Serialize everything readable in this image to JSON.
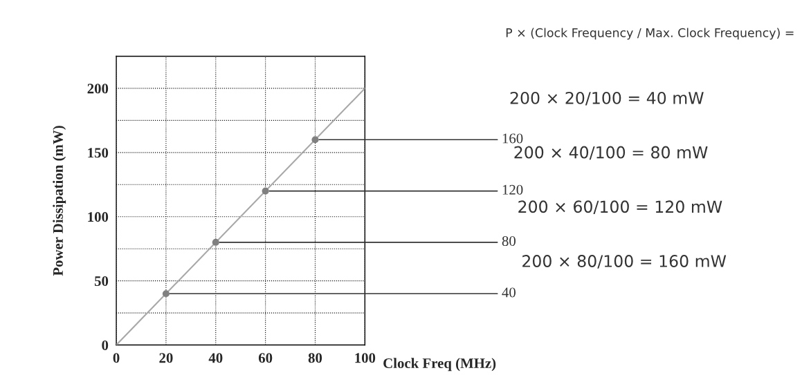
{
  "chart_data": {
    "type": "scatter",
    "xlabel": "Clock Freq (MHz)",
    "ylabel": "Power Dissipation (mW)",
    "xlim": [
      0,
      100
    ],
    "xticks": [
      0,
      20,
      40,
      60,
      80,
      100
    ],
    "ylim": [
      0,
      225
    ],
    "yticks": [
      0,
      {
        "value": 25,
        "label": null
      },
      50,
      {
        "value": 75,
        "label": null
      },
      100,
      {
        "value": 125,
        "label": null
      },
      150,
      {
        "value": 175,
        "label": null
      },
      200,
      {
        "value": 225,
        "label": null
      }
    ],
    "grid": true,
    "marker": "circle",
    "series": [
      {
        "type": "line",
        "color": "#a8a8a8",
        "x": [
          0,
          100
        ],
        "values": [
          0,
          200
        ],
        "marker": "none"
      },
      {
        "color": "#808080",
        "x": [
          20,
          40,
          60,
          80
        ],
        "values": [
          40,
          80,
          120,
          160
        ]
      }
    ],
    "annotations": [
      {
        "text": "160",
        "x": 80,
        "y": 160
      },
      {
        "text": "120",
        "x": 60,
        "y": 120
      },
      {
        "text": "80",
        "x": 40,
        "y": 80
      },
      {
        "text": "40",
        "x": 20,
        "y": 40
      },
      "P × (Clock Frequency / Max. Clock Frequency) =",
      "200 × 20/100 = 40 mW",
      "200 × 40/100 = 80 mW",
      "200 × 60/100 = 120 mW",
      "200 × 80/100 = 160 mW"
    ]
  }
}
